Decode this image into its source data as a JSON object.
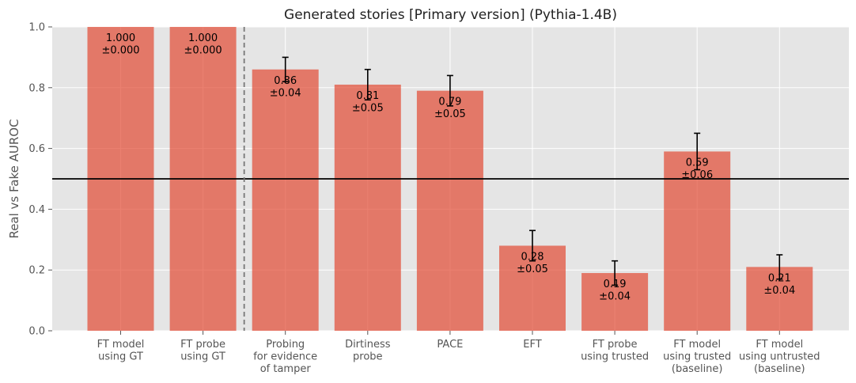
{
  "chart_data": {
    "type": "bar",
    "title": "Generated stories [Primary version] (Pythia-1.4B)",
    "xlabel": "",
    "ylabel": "Real vs Fake AUROC",
    "ylim": [
      0,
      1.0
    ],
    "yticks": [
      "0.0",
      "0.2",
      "0.4",
      "0.6",
      "0.8",
      "1.0"
    ],
    "categories": [
      [
        "FT model",
        "using GT"
      ],
      [
        "FT probe",
        "using GT"
      ],
      [
        "Probing",
        "for evidence",
        "of tamper"
      ],
      [
        "Dirtiness",
        "probe"
      ],
      [
        "PACE"
      ],
      [
        "EFT"
      ],
      [
        "FT probe",
        "using trusted"
      ],
      [
        "FT model",
        "using trusted",
        "(baseline)"
      ],
      [
        "FT model",
        "using untrusted",
        "(baseline)"
      ]
    ],
    "values": [
      1.0,
      1.0,
      0.86,
      0.81,
      0.79,
      0.28,
      0.19,
      0.59,
      0.21
    ],
    "errors": [
      0.0,
      0.0,
      0.04,
      0.05,
      0.05,
      0.05,
      0.04,
      0.06,
      0.04
    ],
    "value_labels": [
      [
        "1.000",
        "±0.000"
      ],
      [
        "1.000",
        "±0.000"
      ],
      [
        "0.86",
        "±0.04"
      ],
      [
        "0.81",
        "±0.05"
      ],
      [
        "0.79",
        "±0.05"
      ],
      [
        "0.28",
        "±0.05"
      ],
      [
        "0.19",
        "±0.04"
      ],
      [
        "0.59",
        "±0.06"
      ],
      [
        "0.21",
        "±0.04"
      ]
    ],
    "reference_line": 0.5,
    "separator_after_category": 2,
    "grid": true,
    "colors": {
      "bar": "#E24A33",
      "background": "#E5E5E5",
      "grid": "#FFFFFF",
      "reference_line": "#000000",
      "separator": "#777777"
    }
  }
}
